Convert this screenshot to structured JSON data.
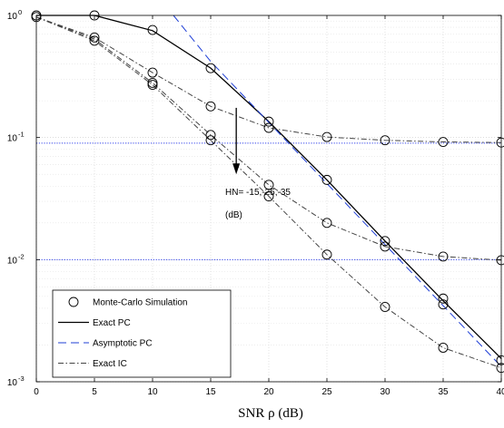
{
  "chart_data": {
    "type": "line",
    "title": "",
    "xlabel": "SNR ρ (dB)",
    "ylabel": "",
    "xlim": [
      0,
      40
    ],
    "ylim": [
      0.001,
      1
    ],
    "yscale": "log",
    "grid": true,
    "legend_position": "bottom-left",
    "x_ticks": [
      0,
      5,
      10,
      15,
      20,
      25,
      30,
      35,
      40
    ],
    "x_tick_labels": [
      "0",
      "5",
      "10",
      "15",
      "20",
      "25",
      "30",
      "35",
      "40"
    ],
    "y_ticks": [
      0.001,
      0.01,
      0.1,
      1
    ],
    "y_tick_labels": [
      {
        "base": "10",
        "exp": "-3"
      },
      {
        "base": "10",
        "exp": "-2"
      },
      {
        "base": "10",
        "exp": "-1"
      },
      {
        "base": "10",
        "exp": "0"
      }
    ],
    "legend": [
      {
        "label": "Monte-Carlo Simulation",
        "style": "marker",
        "color": "#000000"
      },
      {
        "label": "Exact PC",
        "style": "solid",
        "color": "#000000"
      },
      {
        "label": "Asymptotic PC",
        "style": "dashed",
        "color": "#1f3fd6"
      },
      {
        "label": "Exact IC",
        "style": "dashdot",
        "color": "#444444"
      }
    ],
    "series": [
      {
        "name": "Exact PC",
        "style": "solid",
        "color": "#000000",
        "x": [
          0,
          5,
          10,
          15,
          20,
          25,
          30,
          35,
          40
        ],
        "values": [
          1.0,
          1.0,
          0.75,
          0.37,
          0.135,
          0.045,
          0.0142,
          0.0046,
          0.00155
        ]
      },
      {
        "name": "Asymptotic PC",
        "style": "dashed",
        "color": "#1f3fd6",
        "x": [
          11.8,
          15,
          20,
          25,
          30,
          35,
          40
        ],
        "values": [
          1.0,
          0.42,
          0.133,
          0.042,
          0.0133,
          0.0042,
          0.00133
        ]
      },
      {
        "name": "Exact IC HN=-15",
        "style": "dashdot",
        "color": "#444444",
        "x": [
          0,
          5,
          10,
          15,
          20,
          25,
          30,
          35,
          40
        ],
        "values": [
          0.97,
          0.66,
          0.34,
          0.18,
          0.12,
          0.101,
          0.095,
          0.092,
          0.091
        ]
      },
      {
        "name": "Exact IC HN=-25",
        "style": "dashdot",
        "color": "#444444",
        "x": [
          0,
          5,
          10,
          15,
          20,
          25,
          30,
          35,
          40
        ],
        "values": [
          0.97,
          0.64,
          0.28,
          0.105,
          0.041,
          0.02,
          0.0128,
          0.0106,
          0.0099
        ]
      },
      {
        "name": "Exact IC HN=-35",
        "style": "dashdot",
        "color": "#444444",
        "x": [
          0,
          5,
          10,
          15,
          20,
          25,
          30,
          35,
          40
        ],
        "values": [
          0.97,
          0.62,
          0.27,
          0.095,
          0.033,
          0.011,
          0.0041,
          0.0019,
          0.0013
        ]
      }
    ],
    "markers": [
      {
        "x": 0,
        "y": 1.0
      },
      {
        "x": 5,
        "y": 1.0
      },
      {
        "x": 10,
        "y": 0.76
      },
      {
        "x": 15,
        "y": 0.37
      },
      {
        "x": 20,
        "y": 0.135
      },
      {
        "x": 25,
        "y": 0.045
      },
      {
        "x": 30,
        "y": 0.0142
      },
      {
        "x": 35,
        "y": 0.0048
      },
      {
        "x": 35,
        "y": 0.0043
      },
      {
        "x": 40,
        "y": 0.0015
      },
      {
        "x": 0,
        "y": 0.97
      },
      {
        "x": 5,
        "y": 0.66
      },
      {
        "x": 5,
        "y": 0.62
      },
      {
        "x": 10,
        "y": 0.34
      },
      {
        "x": 10,
        "y": 0.28
      },
      {
        "x": 10,
        "y": 0.27
      },
      {
        "x": 15,
        "y": 0.18
      },
      {
        "x": 15,
        "y": 0.105
      },
      {
        "x": 15,
        "y": 0.095
      },
      {
        "x": 20,
        "y": 0.12
      },
      {
        "x": 20,
        "y": 0.041
      },
      {
        "x": 20,
        "y": 0.033
      },
      {
        "x": 25,
        "y": 0.101
      },
      {
        "x": 25,
        "y": 0.02
      },
      {
        "x": 25,
        "y": 0.011
      },
      {
        "x": 30,
        "y": 0.095
      },
      {
        "x": 30,
        "y": 0.0128
      },
      {
        "x": 30,
        "y": 0.0041
      },
      {
        "x": 35,
        "y": 0.092
      },
      {
        "x": 35,
        "y": 0.0106
      },
      {
        "x": 35,
        "y": 0.0019
      },
      {
        "x": 40,
        "y": 0.091
      },
      {
        "x": 40,
        "y": 0.0099
      },
      {
        "x": 40,
        "y": 0.0013
      }
    ],
    "reference_lines": [
      {
        "y": 0.09,
        "color": "#3344ee",
        "style": "dotted"
      },
      {
        "y": 0.01,
        "color": "#3344ee",
        "style": "dotted"
      }
    ],
    "annotation": {
      "line1": "HN= -15,-25,-35",
      "line2": "(dB)",
      "arrow_from": {
        "x": 17.2,
        "y": 0.175
      },
      "arrow_to": {
        "x": 17.2,
        "y": 0.05
      }
    }
  }
}
